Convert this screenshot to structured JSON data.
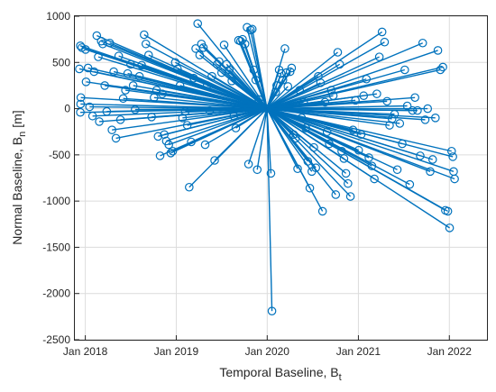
{
  "chart_data": {
    "type": "scatter",
    "title": "",
    "xlabel": "Temporal Baseline, B",
    "xlabel_subscript": "t",
    "ylabel": "Normal Baseline, B",
    "ylabel_subscript": "n",
    "ylabel_unit": "[m]",
    "x_ticks": [
      "Jan 2018",
      "Jan 2019",
      "Jan 2020",
      "Jan 2021",
      "Jan 2022"
    ],
    "y_ticks": [
      1000,
      500,
      0,
      -500,
      -1000,
      -1500,
      -2000,
      -2500
    ],
    "xlim": [
      "2017-11-20",
      "2022-06-01"
    ],
    "ylim": [
      -2500,
      1000
    ],
    "grid": true,
    "color": "#0072BD",
    "marker": "open-circle",
    "reference": {
      "date": "2019-12-31",
      "y": 0
    },
    "series": [
      {
        "points": [
          [
            "2017-12-08",
            430
          ],
          [
            "2017-12-12",
            680
          ],
          [
            "2017-12-18",
            660
          ],
          [
            "2017-12-14",
            120
          ],
          [
            "2017-12-13",
            50
          ],
          [
            "2017-12-12",
            -40
          ],
          [
            "2018-01-02",
            640
          ],
          [
            "2018-01-04",
            290
          ],
          [
            "2018-01-12",
            440
          ],
          [
            "2018-01-18",
            20
          ],
          [
            "2018-01-30",
            -80
          ],
          [
            "2018-02-05",
            400
          ],
          [
            "2018-02-16",
            790
          ],
          [
            "2018-02-22",
            560
          ],
          [
            "2018-02-26",
            -140
          ],
          [
            "2018-03-06",
            730
          ],
          [
            "2018-03-12",
            700
          ],
          [
            "2018-03-20",
            250
          ],
          [
            "2018-03-28",
            -30
          ],
          [
            "2018-04-09",
            710
          ],
          [
            "2018-04-18",
            -230
          ],
          [
            "2018-04-25",
            400
          ],
          [
            "2018-05-04",
            -320
          ],
          [
            "2018-05-15",
            570
          ],
          [
            "2018-05-22",
            -120
          ],
          [
            "2018-06-02",
            110
          ],
          [
            "2018-06-11",
            200
          ],
          [
            "2018-06-20",
            380
          ],
          [
            "2018-07-02",
            480
          ],
          [
            "2018-07-12",
            250
          ],
          [
            "2018-07-20",
            -10
          ],
          [
            "2018-08-06",
            350
          ],
          [
            "2018-08-15",
            470
          ],
          [
            "2018-08-25",
            800
          ],
          [
            "2018-09-01",
            700
          ],
          [
            "2018-09-12",
            580
          ],
          [
            "2018-09-24",
            -90
          ],
          [
            "2018-10-04",
            120
          ],
          [
            "2018-10-14",
            200
          ],
          [
            "2018-10-20",
            -300
          ],
          [
            "2018-10-28",
            -510
          ],
          [
            "2018-11-06",
            160
          ],
          [
            "2018-11-14",
            -280
          ],
          [
            "2018-11-22",
            -350
          ],
          [
            "2018-12-02",
            -390
          ],
          [
            "2018-12-10",
            -480
          ],
          [
            "2018-12-18",
            -460
          ],
          [
            "2018-12-28",
            500
          ],
          [
            "2019-01-06",
            430
          ],
          [
            "2019-01-16",
            250
          ],
          [
            "2019-01-26",
            -100
          ],
          [
            "2019-02-06",
            -30
          ],
          [
            "2019-02-14",
            -180
          ],
          [
            "2019-02-22",
            -850
          ],
          [
            "2019-03-02",
            -360
          ],
          [
            "2019-03-12",
            330
          ],
          [
            "2019-03-20",
            650
          ],
          [
            "2019-03-28",
            920
          ],
          [
            "2019-04-05",
            580
          ],
          [
            "2019-04-12",
            700
          ],
          [
            "2019-04-20",
            660
          ],
          [
            "2019-04-27",
            -390
          ],
          [
            "2019-05-05",
            250
          ],
          [
            "2019-05-15",
            -20
          ],
          [
            "2019-05-24",
            350
          ],
          [
            "2019-06-04",
            -560
          ],
          [
            "2019-06-14",
            480
          ],
          [
            "2019-06-22",
            510
          ],
          [
            "2019-07-02",
            390
          ],
          [
            "2019-07-12",
            690
          ],
          [
            "2019-07-22",
            480
          ],
          [
            "2019-08-02",
            420
          ],
          [
            "2019-08-12",
            300
          ],
          [
            "2019-08-20",
            -80
          ],
          [
            "2019-08-28",
            -210
          ],
          [
            "2019-09-08",
            740
          ],
          [
            "2019-09-16",
            730
          ],
          [
            "2019-09-24",
            750
          ],
          [
            "2019-10-04",
            700
          ],
          [
            "2019-10-12",
            880
          ],
          [
            "2019-10-18",
            -600
          ],
          [
            "2019-10-26",
            850
          ],
          [
            "2019-11-02",
            860
          ],
          [
            "2019-11-08",
            420
          ],
          [
            "2019-11-16",
            310
          ],
          [
            "2019-11-22",
            -660
          ],
          [
            "2019-11-28",
            100
          ],
          [
            "2020-01-16",
            -700
          ],
          [
            "2020-01-20",
            -2190
          ],
          [
            "2020-02-04",
            180
          ],
          [
            "2020-02-08",
            250
          ],
          [
            "2020-02-18",
            420
          ],
          [
            "2020-02-26",
            380
          ],
          [
            "2020-03-04",
            310
          ],
          [
            "2020-03-12",
            650
          ],
          [
            "2020-03-18",
            390
          ],
          [
            "2020-03-24",
            240
          ],
          [
            "2020-04-02",
            400
          ],
          [
            "2020-04-08",
            440
          ],
          [
            "2020-04-16",
            -280
          ],
          [
            "2020-04-24",
            -320
          ],
          [
            "2020-05-02",
            -650
          ],
          [
            "2020-05-10",
            200
          ],
          [
            "2020-05-18",
            -100
          ],
          [
            "2020-05-26",
            70
          ],
          [
            "2020-06-04",
            -210
          ],
          [
            "2020-06-12",
            -570
          ],
          [
            "2020-06-20",
            -860
          ],
          [
            "2020-06-28",
            -680
          ],
          [
            "2020-07-06",
            -420
          ],
          [
            "2020-07-14",
            -640
          ],
          [
            "2020-07-24",
            350
          ],
          [
            "2020-08-02",
            280
          ],
          [
            "2020-08-10",
            -1110
          ],
          [
            "2020-08-20",
            70
          ],
          [
            "2020-08-28",
            -250
          ],
          [
            "2020-09-06",
            -380
          ],
          [
            "2020-09-14",
            200
          ],
          [
            "2020-09-22",
            140
          ],
          [
            "2020-10-02",
            -930
          ],
          [
            "2020-10-10",
            610
          ],
          [
            "2020-10-18",
            480
          ],
          [
            "2020-10-26",
            -460
          ],
          [
            "2020-11-04",
            -540
          ],
          [
            "2020-11-12",
            -700
          ],
          [
            "2020-11-20",
            -810
          ],
          [
            "2020-11-30",
            -950
          ],
          [
            "2020-12-10",
            -230
          ],
          [
            "2020-12-20",
            90
          ],
          [
            "2021-01-02",
            -450
          ],
          [
            "2021-01-12",
            -280
          ],
          [
            "2021-01-22",
            140
          ],
          [
            "2021-02-02",
            320
          ],
          [
            "2021-02-12",
            -530
          ],
          [
            "2021-02-24",
            -620
          ],
          [
            "2021-03-06",
            -760
          ],
          [
            "2021-03-16",
            160
          ],
          [
            "2021-03-26",
            560
          ],
          [
            "2021-04-06",
            830
          ],
          [
            "2021-04-16",
            720
          ],
          [
            "2021-04-26",
            80
          ],
          [
            "2021-05-06",
            -180
          ],
          [
            "2021-05-16",
            -110
          ],
          [
            "2021-05-26",
            -60
          ],
          [
            "2021-06-06",
            -660
          ],
          [
            "2021-06-16",
            -160
          ],
          [
            "2021-06-26",
            -380
          ],
          [
            "2021-07-06",
            420
          ],
          [
            "2021-07-16",
            30
          ],
          [
            "2021-07-26",
            -820
          ],
          [
            "2021-08-06",
            -20
          ],
          [
            "2021-08-16",
            120
          ],
          [
            "2021-08-26",
            -20
          ],
          [
            "2021-09-06",
            -510
          ],
          [
            "2021-09-16",
            710
          ],
          [
            "2021-09-26",
            -120
          ],
          [
            "2021-10-06",
            0
          ],
          [
            "2021-10-16",
            -680
          ],
          [
            "2021-10-26",
            -550
          ],
          [
            "2021-11-06",
            -100
          ],
          [
            "2021-11-16",
            630
          ],
          [
            "2021-11-26",
            420
          ],
          [
            "2021-12-06",
            450
          ],
          [
            "2021-12-16",
            -1100
          ],
          [
            "2021-12-26",
            -1110
          ],
          [
            "2022-01-02",
            -1290
          ],
          [
            "2022-01-10",
            -460
          ],
          [
            "2022-01-15",
            -520
          ],
          [
            "2022-01-18",
            -680
          ],
          [
            "2022-01-22",
            -760
          ]
        ]
      }
    ]
  }
}
